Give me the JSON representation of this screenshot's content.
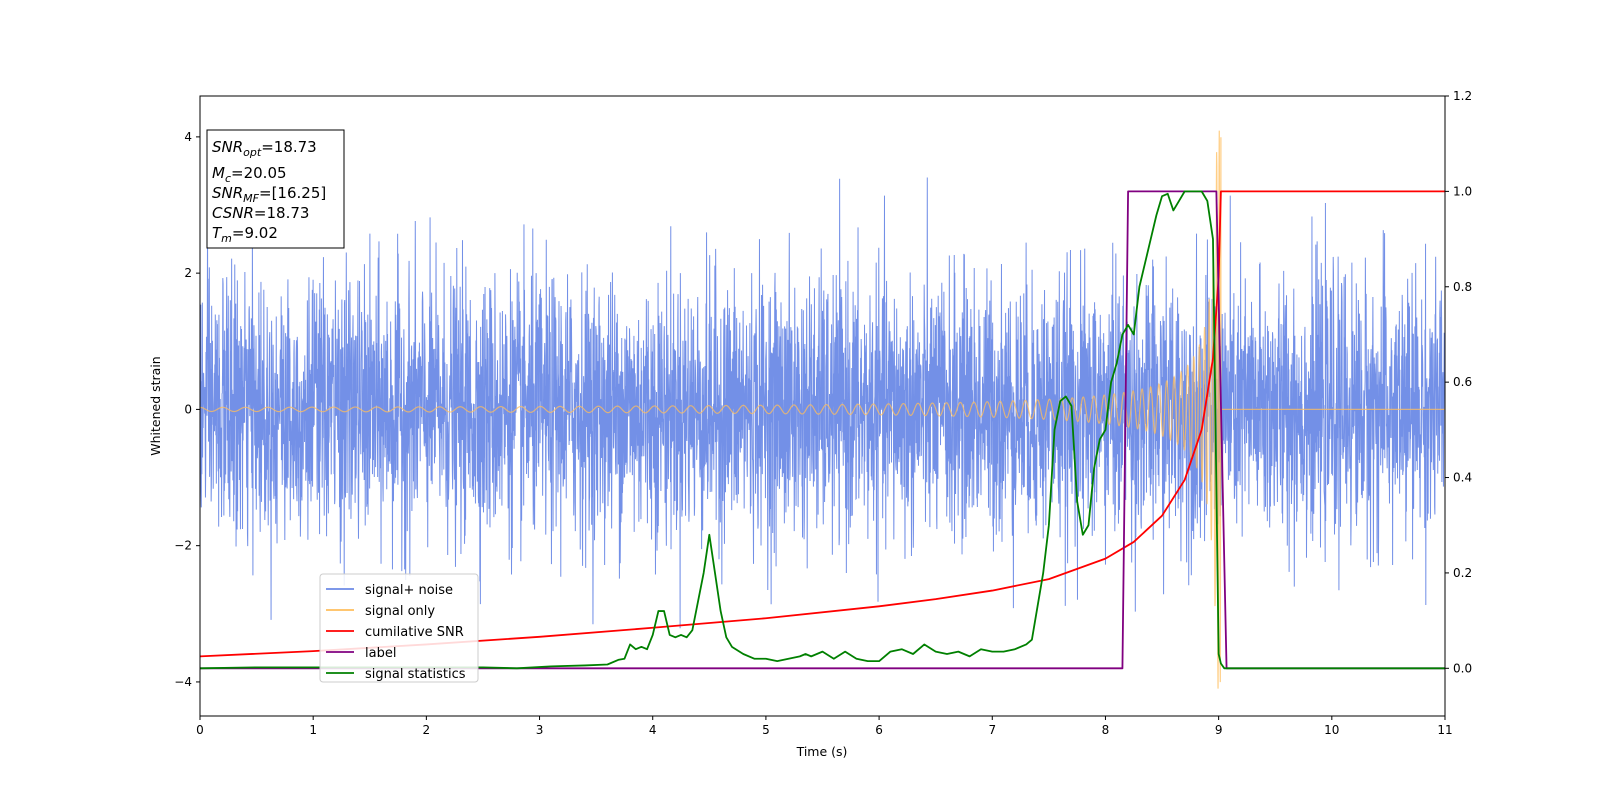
{
  "chart_data": {
    "type": "line",
    "xlabel": "Time (s)",
    "ylabel_left": "Whitened strain",
    "ylabel_right": "",
    "xlim": [
      0,
      11
    ],
    "ylim_left": [
      -4.5,
      4.6
    ],
    "ylim_right": [
      -0.1,
      1.2
    ],
    "x_ticks": [
      0,
      1,
      2,
      3,
      4,
      5,
      6,
      7,
      8,
      9,
      10,
      11
    ],
    "y_ticks_left": [
      -4,
      -2,
      0,
      2,
      4
    ],
    "y_ticks_right": [
      0.0,
      0.2,
      0.4,
      0.6,
      0.8,
      1.0,
      1.2
    ],
    "y_ticks_right_labels": [
      "0.0",
      "0.2",
      "0.4",
      "0.6",
      "0.8",
      "1.0",
      "1.2"
    ],
    "grid": false,
    "legend_position": "lower-left",
    "colors": {
      "noise": "#6b8ae6",
      "signal": "#ffbe5c",
      "csnr": "#ff0000",
      "label": "#800080",
      "stats": "#008000"
    },
    "info_box": {
      "snr_opt_main": "SNR",
      "snr_opt_sub": "opt",
      "snr_opt_val": "=18.73",
      "mc_main": "M",
      "mc_sub": "c",
      "mc_val": "=20.05",
      "snr_mf_main": "SNR",
      "snr_mf_sub": "MF",
      "snr_mf_val": "=[16.25]",
      "csnr_main": "CSNR",
      "csnr_val": "=18.73",
      "tm_main": "T",
      "tm_sub": "m",
      "tm_val": "=9.02"
    },
    "series": [
      {
        "name": "signal+ noise",
        "axis": "left",
        "kind": "noise",
        "x_range": [
          0,
          11
        ],
        "std": 0.95,
        "max": 4.15,
        "min": -4.1
      },
      {
        "name": "signal only",
        "axis": "left",
        "kind": "chirp",
        "x_start": 0,
        "merger_time": 9.02,
        "amplitude_start": 0.03,
        "amplitude_peak": 4.1,
        "after_merger": 0
      },
      {
        "name": "cumilative SNR",
        "axis": "right",
        "x": [
          0,
          1,
          2,
          3,
          4,
          5,
          6,
          6.5,
          7,
          7.5,
          8,
          8.25,
          8.5,
          8.7,
          8.85,
          8.95,
          9.0,
          9.02,
          11
        ],
        "y": [
          0.025,
          0.036,
          0.05,
          0.066,
          0.085,
          0.105,
          0.13,
          0.145,
          0.163,
          0.187,
          0.23,
          0.265,
          0.32,
          0.395,
          0.5,
          0.65,
          0.82,
          1.0,
          1.0
        ]
      },
      {
        "name": "label",
        "axis": "right",
        "x": [
          0,
          8.15,
          8.2,
          8.98,
          9.07,
          11
        ],
        "y": [
          0,
          0,
          1.0,
          1.0,
          0,
          0
        ]
      },
      {
        "name": "signal statistics",
        "axis": "right",
        "x": [
          0,
          0.5,
          1,
          1.5,
          2,
          2.5,
          2.8,
          3.1,
          3.4,
          3.6,
          3.7,
          3.75,
          3.8,
          3.85,
          3.9,
          3.95,
          4.0,
          4.05,
          4.1,
          4.15,
          4.2,
          4.25,
          4.3,
          4.35,
          4.4,
          4.45,
          4.5,
          4.55,
          4.6,
          4.65,
          4.7,
          4.8,
          4.9,
          5.0,
          5.1,
          5.2,
          5.3,
          5.35,
          5.4,
          5.5,
          5.6,
          5.7,
          5.8,
          5.9,
          6.0,
          6.1,
          6.2,
          6.3,
          6.4,
          6.5,
          6.6,
          6.7,
          6.8,
          6.9,
          7.0,
          7.1,
          7.2,
          7.3,
          7.35,
          7.4,
          7.45,
          7.5,
          7.55,
          7.6,
          7.65,
          7.7,
          7.75,
          7.8,
          7.85,
          7.9,
          7.95,
          8.0,
          8.05,
          8.1,
          8.15,
          8.2,
          8.25,
          8.3,
          8.35,
          8.4,
          8.45,
          8.5,
          8.55,
          8.6,
          8.65,
          8.7,
          8.75,
          8.8,
          8.85,
          8.9,
          8.95,
          9.0,
          9.02,
          9.05,
          9.1,
          9.2,
          9.5,
          10,
          11
        ],
        "y": [
          0.0,
          0.002,
          0.002,
          0.002,
          0.002,
          0.002,
          0.0,
          0.004,
          0.006,
          0.008,
          0.018,
          0.02,
          0.05,
          0.04,
          0.045,
          0.04,
          0.07,
          0.12,
          0.12,
          0.07,
          0.065,
          0.07,
          0.065,
          0.08,
          0.14,
          0.2,
          0.28,
          0.2,
          0.12,
          0.065,
          0.045,
          0.03,
          0.02,
          0.02,
          0.015,
          0.02,
          0.025,
          0.03,
          0.025,
          0.035,
          0.02,
          0.035,
          0.02,
          0.015,
          0.015,
          0.035,
          0.04,
          0.03,
          0.05,
          0.035,
          0.03,
          0.035,
          0.025,
          0.04,
          0.035,
          0.035,
          0.04,
          0.05,
          0.06,
          0.13,
          0.2,
          0.3,
          0.5,
          0.56,
          0.57,
          0.55,
          0.35,
          0.28,
          0.3,
          0.42,
          0.48,
          0.5,
          0.6,
          0.64,
          0.7,
          0.72,
          0.7,
          0.8,
          0.85,
          0.9,
          0.95,
          0.99,
          0.995,
          0.96,
          0.98,
          1.0,
          1.0,
          1.0,
          1.0,
          0.98,
          0.9,
          0.03,
          0.01,
          0.0,
          0.0,
          0.0,
          0.0,
          0.0,
          0.0
        ]
      }
    ]
  }
}
